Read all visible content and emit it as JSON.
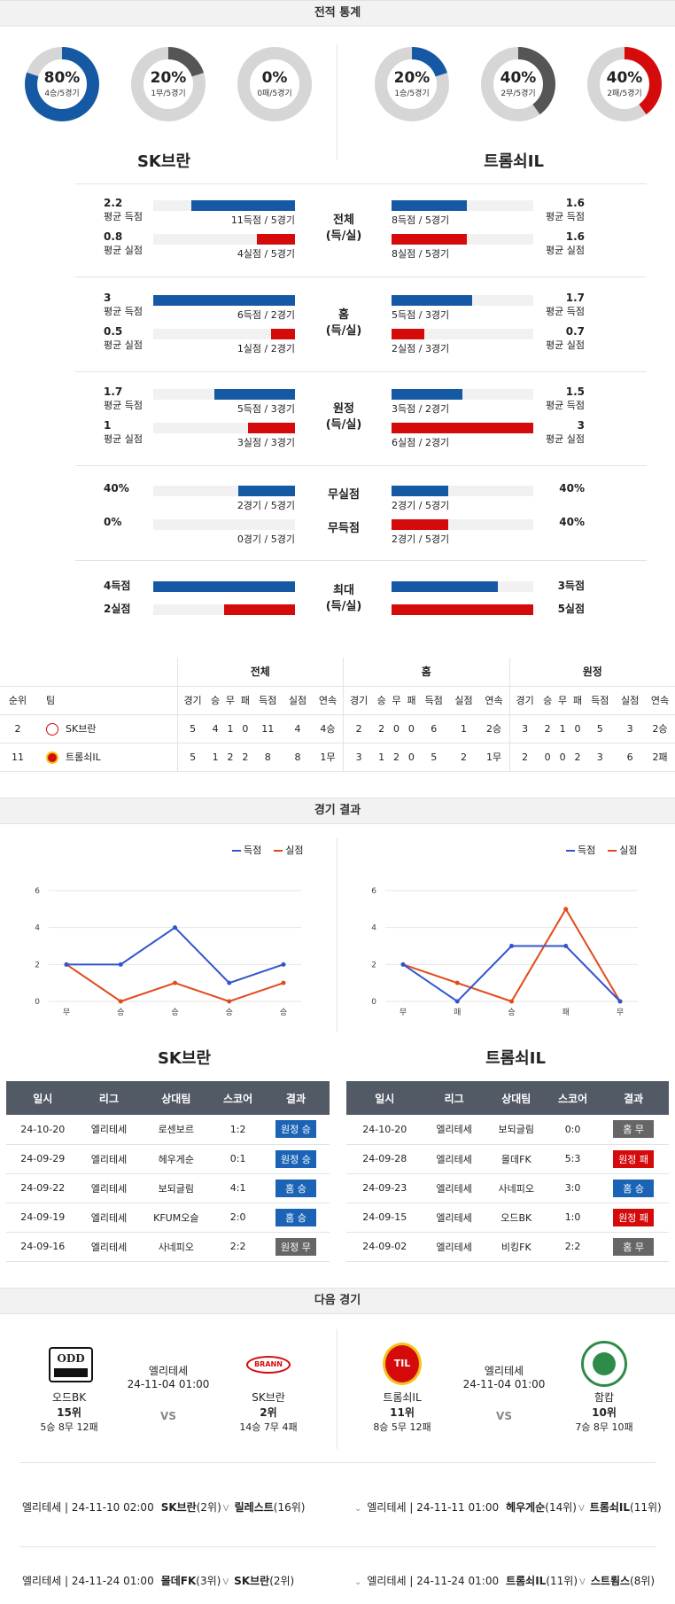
{
  "header_stats": "전적 통계",
  "header_results": "경기 결과",
  "header_next": "다음 경기",
  "home_team": "SK브란",
  "away_team": "트롬쇠IL",
  "donuts": [
    {
      "pct": "80%",
      "sub": "4승/5경기",
      "value": 0.8,
      "color": "#1559a5"
    },
    {
      "pct": "20%",
      "sub": "1무/5경기",
      "value": 0.2,
      "color": "#555555"
    },
    {
      "pct": "0%",
      "sub": "0패/5경기",
      "value": 0.0,
      "color": "#d50b0b"
    },
    {
      "pct": "20%",
      "sub": "1승/5경기",
      "value": 0.2,
      "color": "#1559a5"
    },
    {
      "pct": "40%",
      "sub": "2무/5경기",
      "value": 0.4,
      "color": "#555555"
    },
    {
      "pct": "40%",
      "sub": "2패/5경기",
      "value": 0.4,
      "color": "#d50b0b"
    }
  ],
  "stats": {
    "all": {
      "cat1": "전체",
      "cat2": "(득/실)",
      "h_for": "2.2",
      "h_for_lbl": "평균 득점",
      "h_for_cap": "11득점 / 5경기",
      "h_for_frac": 0.73,
      "h_ag": "0.8",
      "h_ag_lbl": "평균 실점",
      "h_ag_cap": "4실점 / 5경기",
      "h_ag_frac": 0.27,
      "a_for": "1.6",
      "a_for_lbl": "평균 득점",
      "a_for_cap": "8득점 / 5경기",
      "a_for_frac": 0.53,
      "a_ag": "1.6",
      "a_ag_lbl": "평균 실점",
      "a_ag_cap": "8실점 / 5경기",
      "a_ag_frac": 0.53
    },
    "home": {
      "cat1": "홈",
      "cat2": "(득/실)",
      "h_for": "3",
      "h_for_lbl": "평균 득점",
      "h_for_cap": "6득점 / 2경기",
      "h_for_frac": 1.0,
      "h_ag": "0.5",
      "h_ag_lbl": "평균 실점",
      "h_ag_cap": "1실점 / 2경기",
      "h_ag_frac": 0.17,
      "a_for": "1.7",
      "a_for_lbl": "평균 득점",
      "a_for_cap": "5득점 / 3경기",
      "a_for_frac": 0.57,
      "a_ag": "0.7",
      "a_ag_lbl": "평균 실점",
      "a_ag_cap": "2실점 / 3경기",
      "a_ag_frac": 0.23
    },
    "away": {
      "cat1": "원정",
      "cat2": "(득/실)",
      "h_for": "1.7",
      "h_for_lbl": "평균 득점",
      "h_for_cap": "5득점 / 3경기",
      "h_for_frac": 0.57,
      "h_ag": "1",
      "h_ag_lbl": "평균 실점",
      "h_ag_cap": "3실점 / 3경기",
      "h_ag_frac": 0.33,
      "a_for": "1.5",
      "a_for_lbl": "평균 득점",
      "a_for_cap": "3득점 / 2경기",
      "a_for_frac": 0.5,
      "a_ag": "3",
      "a_ag_lbl": "평균 실점",
      "a_ag_cap": "6실점 / 2경기",
      "a_ag_frac": 1.0
    },
    "clean": {
      "cat_cs": "무실점",
      "cat_ns": "무득점",
      "h_cs": "40%",
      "h_cs_cap": "2경기 / 5경기",
      "h_cs_frac": 0.4,
      "h_ns": "0%",
      "h_ns_cap": "0경기 / 5경기",
      "h_ns_frac": 0.0,
      "a_cs": "40%",
      "a_cs_cap": "2경기 / 5경기",
      "a_cs_frac": 0.4,
      "a_ns": "40%",
      "a_ns_cap": "2경기 / 5경기",
      "a_ns_frac": 0.4
    },
    "max": {
      "cat1": "최대",
      "cat2": "(득/실)",
      "h_for": "4득점",
      "h_for_frac": 1.0,
      "h_ag": "2실점",
      "h_ag_frac": 0.5,
      "a_for": "3득점",
      "a_for_frac": 0.75,
      "a_ag": "5실점",
      "a_ag_frac": 1.0
    }
  },
  "standings": {
    "groups": [
      "전체",
      "홈",
      "원정"
    ],
    "col_rank": "순위",
    "col_team": "팀",
    "cols": [
      "경기",
      "승",
      "무",
      "패",
      "득점",
      "실점",
      "연속"
    ],
    "rows": [
      {
        "rank": "2",
        "team": "SK브란",
        "all": [
          "5",
          "4",
          "1",
          "0",
          "11",
          "4",
          "4승"
        ],
        "home": [
          "2",
          "2",
          "0",
          "0",
          "6",
          "1",
          "2승"
        ],
        "away": [
          "3",
          "2",
          "1",
          "0",
          "5",
          "3",
          "2승"
        ]
      },
      {
        "rank": "11",
        "team": "트롬쇠IL",
        "all": [
          "5",
          "1",
          "2",
          "2",
          "8",
          "8",
          "1무"
        ],
        "home": [
          "3",
          "1",
          "2",
          "0",
          "5",
          "2",
          "1무"
        ],
        "away": [
          "2",
          "0",
          "0",
          "2",
          "3",
          "6",
          "2패"
        ]
      }
    ]
  },
  "charts_legend": {
    "for": "득점",
    "against": "실점"
  },
  "chart_data": [
    {
      "type": "line",
      "categories": [
        "무",
        "승",
        "승",
        "승",
        "승"
      ],
      "ylim": [
        0,
        6
      ],
      "yticks": [
        "0",
        "2",
        "4",
        "6"
      ],
      "series": [
        {
          "name": "득점",
          "values": [
            2,
            2,
            4,
            1,
            2
          ],
          "color": "#3355cc"
        },
        {
          "name": "실점",
          "values": [
            2,
            0,
            1,
            0,
            1
          ],
          "color": "#e24a1b"
        }
      ]
    },
    {
      "type": "line",
      "categories": [
        "무",
        "패",
        "승",
        "패",
        "무"
      ],
      "ylim": [
        0,
        6
      ],
      "yticks": [
        "0",
        "2",
        "4",
        "6"
      ],
      "series": [
        {
          "name": "득점",
          "values": [
            2,
            0,
            3,
            3,
            0
          ],
          "color": "#3355cc"
        },
        {
          "name": "실점",
          "values": [
            2,
            1,
            0,
            5,
            0
          ],
          "color": "#e24a1b"
        }
      ]
    }
  ],
  "results_cols": [
    "일시",
    "리그",
    "상대팀",
    "스코어",
    "결과"
  ],
  "home_results": [
    {
      "date": "24-10-20",
      "league": "엘리테세",
      "opp": "로센보르",
      "score": "1:2",
      "result": "원정 승",
      "color": "#1a63b5"
    },
    {
      "date": "24-09-29",
      "league": "엘리테세",
      "opp": "헤우게순",
      "score": "0:1",
      "result": "원정 승",
      "color": "#1a63b5"
    },
    {
      "date": "24-09-22",
      "league": "엘리테세",
      "opp": "보되글림",
      "score": "4:1",
      "result": "홈 승",
      "color": "#1a63b5"
    },
    {
      "date": "24-09-19",
      "league": "엘리테세",
      "opp": "KFUM오슬",
      "score": "2:0",
      "result": "홈 승",
      "color": "#1a63b5"
    },
    {
      "date": "24-09-16",
      "league": "엘리테세",
      "opp": "사네피오",
      "score": "2:2",
      "result": "원정 무",
      "color": "#666666"
    }
  ],
  "away_results": [
    {
      "date": "24-10-20",
      "league": "엘리테세",
      "opp": "보되글림",
      "score": "0:0",
      "result": "홈 무",
      "color": "#666666"
    },
    {
      "date": "24-09-28",
      "league": "엘리테세",
      "opp": "몰데FK",
      "score": "5:3",
      "result": "원정 패",
      "color": "#d50b0b"
    },
    {
      "date": "24-09-23",
      "league": "엘리테세",
      "opp": "사네피오",
      "score": "3:0",
      "result": "홈 승",
      "color": "#1a63b5"
    },
    {
      "date": "24-09-15",
      "league": "엘리테세",
      "opp": "오드BK",
      "score": "1:0",
      "result": "원정 패",
      "color": "#d50b0b"
    },
    {
      "date": "24-09-02",
      "league": "엘리테세",
      "opp": "비킹FK",
      "score": "2:2",
      "result": "홈 무",
      "color": "#666666"
    }
  ],
  "next": {
    "left": {
      "t1": {
        "name": "오드BK",
        "rank": "15위",
        "rec": "5승 8무 12패"
      },
      "league": "엘리테세",
      "time": "24-11-04 01:00",
      "vs": "VS",
      "t2": {
        "name": "SK브란",
        "rank": "2위",
        "rec": "14승 7무 4패",
        "logo_text": "BRANN"
      }
    },
    "right": {
      "t1": {
        "name": "트롬쇠IL",
        "rank": "11위",
        "rec": "8승 5무 12패"
      },
      "league": "엘리테세",
      "time": "24-11-04 01:00",
      "vs": "VS",
      "t2": {
        "name": "함캄",
        "rank": "10위",
        "rec": "7승 8무 10패"
      }
    },
    "logo_odd": "ODD",
    "logo_til": "TIL"
  },
  "upcoming": [
    {
      "pre": "엘리테세 | 24-11-10 02:00",
      "a": "SK브란",
      "ar": "(2위)",
      "v": "V",
      "b": "릴레스트",
      "br": "(16위)"
    },
    {
      "pre": "엘리테세 | 24-11-11 01:00",
      "a": "헤우게순",
      "ar": "(14위)",
      "v": "V",
      "b": "트롬쇠IL",
      "br": "(11위)"
    },
    {
      "pre": "엘리테세 | 24-11-24 01:00",
      "a": "몰데FK",
      "ar": "(3위)",
      "v": "V",
      "b": "SK브란",
      "br": "(2위)"
    },
    {
      "pre": "엘리테세 | 24-11-24 01:00",
      "a": "트롬쇠IL",
      "ar": "(11위)",
      "v": "V",
      "b": "스트룀스",
      "br": "(8위)"
    }
  ]
}
